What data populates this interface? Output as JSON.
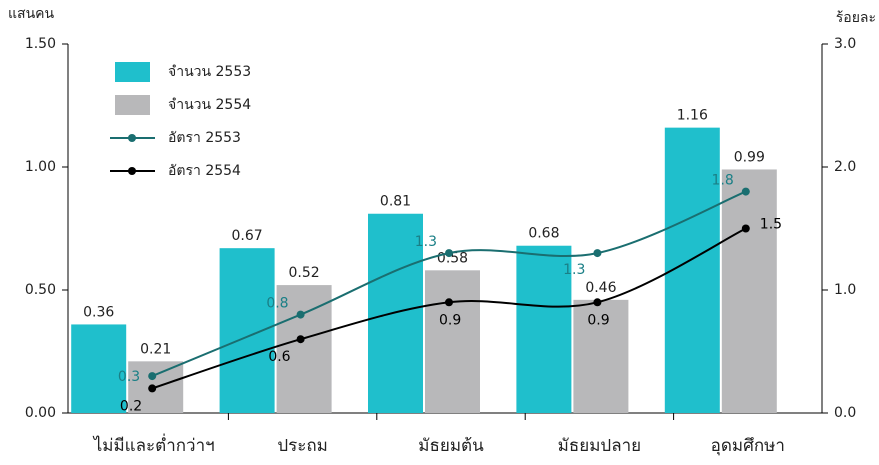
{
  "chart_data": {
    "type": "bar_line",
    "y_label": "แสนคน",
    "y2_label": "ร้อยละ",
    "categories": [
      "ไม่มีและต่ำกว่าฯ",
      "ประถม",
      "มัธยมต้น",
      "มัธยมปลาย",
      "อุดมศึกษา"
    ],
    "series": [
      {
        "name": "จำนวน 2553",
        "kind": "bar",
        "color": "#1fbfcc",
        "values": [
          0.36,
          0.67,
          0.81,
          0.68,
          1.16
        ]
      },
      {
        "name": "จำนวน 2554",
        "kind": "bar",
        "color": "#b8b8ba",
        "values": [
          0.21,
          0.52,
          0.58,
          0.46,
          0.99
        ]
      },
      {
        "name": "อัตรา 2553",
        "kind": "line",
        "axis": "y2",
        "color": "#1a6e70",
        "values": [
          0.3,
          0.8,
          1.3,
          1.3,
          1.8
        ]
      },
      {
        "name": "อัตรา 2554",
        "kind": "line",
        "axis": "y2",
        "color": "#000000",
        "values": [
          0.2,
          0.6,
          0.9,
          0.9,
          1.5
        ]
      }
    ],
    "ylim": [
      0,
      1.5
    ],
    "yticks": [
      {
        "value": 0,
        "label": "0.00"
      },
      {
        "value": 0.5,
        "label": "0.50"
      },
      {
        "value": 1,
        "label": "1.00"
      },
      {
        "value": 1.5,
        "label": "1.50"
      }
    ],
    "y2lim": [
      0,
      3
    ],
    "y2ticks": [
      {
        "value": 0,
        "label": "0.0"
      },
      {
        "value": 1,
        "label": "1.0"
      },
      {
        "value": 2,
        "label": "2.0"
      },
      {
        "value": 3,
        "label": "3.0"
      }
    ],
    "legend": "top-left"
  }
}
